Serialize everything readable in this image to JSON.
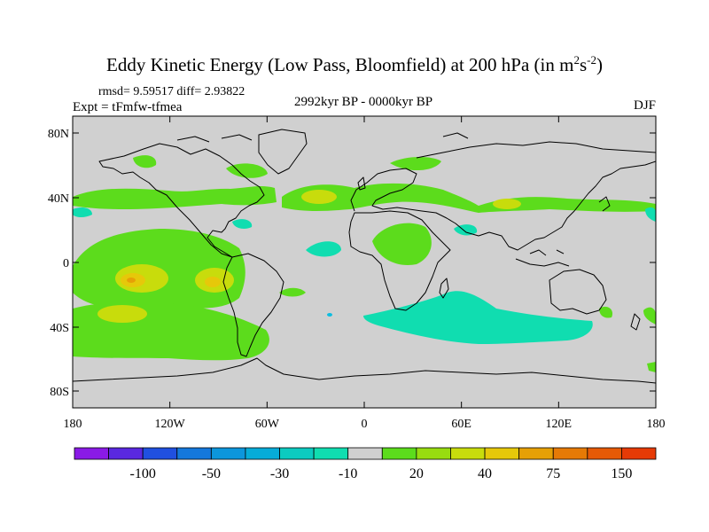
{
  "title": {
    "main": "Eddy Kinetic Energy (Low Pass, Bloomfield) at 200 hPa (in m",
    "sup1": "2",
    "mid": "s",
    "sup2": "-2",
    "close": ")"
  },
  "stats": "rmsd= 9.59517 diff= 2.93822",
  "experiment": "Expt = tFmfw-tfmea",
  "period": "2992kyr BP - 0000kyr BP",
  "season": "DJF",
  "map": {
    "lat_ticks": [
      "80N",
      "40N",
      "0",
      "40S",
      "80S"
    ],
    "lon_ticks": [
      "180",
      "120W",
      "60W",
      "0",
      "60E",
      "120E",
      "180"
    ],
    "background_color": "#d0d0d0"
  },
  "colorbar": {
    "colors": [
      "#8a1ae6",
      "#5a28e0",
      "#2050e0",
      "#1478dc",
      "#0c96dc",
      "#06acd8",
      "#0ccbc0",
      "#10ddb0",
      "#d0d0d0",
      "#5cdc1c",
      "#98dc10",
      "#c8dc0c",
      "#e6c80a",
      "#e6a006",
      "#e67a06",
      "#e65a06",
      "#e63a06"
    ],
    "labels": [
      "-100",
      "-50",
      "-30",
      "-10",
      "20",
      "40",
      "75",
      "150"
    ]
  }
}
